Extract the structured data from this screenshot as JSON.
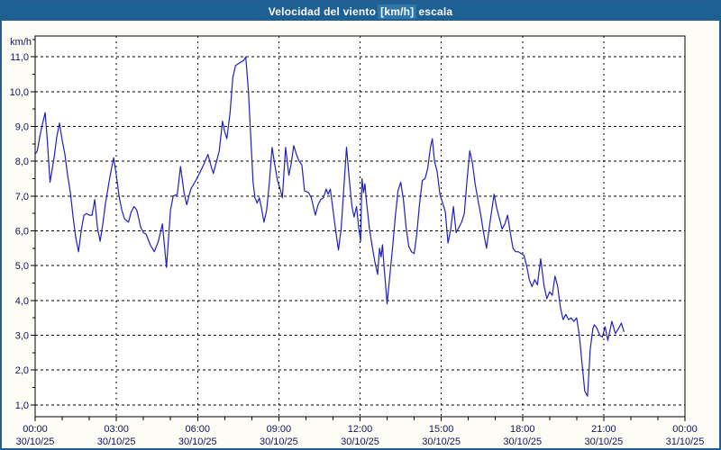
{
  "header": {
    "title_prefix": "Velocidad del viento",
    "title_unit": "[km/h]",
    "title_suffix": "escala"
  },
  "colors": {
    "titlebar_bg": "#1E5F94",
    "titlebar_unit_highlight": "#2F77A8",
    "titlebar_text": "#FFFFFF",
    "window_border": "#235E91",
    "page_bg": "#FDFDF6",
    "plot_bg": "#FFFFFF",
    "grid": "#000000",
    "axis_text": "#121260",
    "line": "#2020C0"
  },
  "chart_data": {
    "type": "line",
    "title": "Velocidad del viento [km/h] escala",
    "ylabel": "km/h",
    "xlabel": "",
    "grid": true,
    "legend": "none",
    "xlim_hours": [
      0,
      24
    ],
    "ylim": [
      0.66,
      11.6
    ],
    "x_major_ticks": [
      {
        "t": 0,
        "time": "00:00",
        "date": "30/10/25"
      },
      {
        "t": 3,
        "time": "03:00",
        "date": "30/10/25"
      },
      {
        "t": 6,
        "time": "06:00",
        "date": "30/10/25"
      },
      {
        "t": 9,
        "time": "09:00",
        "date": "30/10/25"
      },
      {
        "t": 12,
        "time": "12:00",
        "date": "30/10/25"
      },
      {
        "t": 15,
        "time": "15:00",
        "date": "30/10/25"
      },
      {
        "t": 18,
        "time": "18:00",
        "date": "30/10/25"
      },
      {
        "t": 21,
        "time": "21:00",
        "date": "30/10/25"
      },
      {
        "t": 24,
        "time": "00:00",
        "date": "31/10/25"
      }
    ],
    "y_ticks": [
      {
        "v": 1,
        "label": "1,0"
      },
      {
        "v": 2,
        "label": "2,0"
      },
      {
        "v": 3,
        "label": "3,0"
      },
      {
        "v": 4,
        "label": "4,0"
      },
      {
        "v": 5,
        "label": "5,0"
      },
      {
        "v": 6,
        "label": "6,0"
      },
      {
        "v": 7,
        "label": "7,0"
      },
      {
        "v": 8,
        "label": "8,0"
      },
      {
        "v": 9,
        "label": "9,0"
      },
      {
        "v": 10,
        "label": "10,0"
      },
      {
        "v": 11,
        "label": "11,0"
      }
    ],
    "series": [
      {
        "name": "Velocidad del viento",
        "color": "#2020C0",
        "points": [
          [
            0.0,
            8.2
          ],
          [
            0.08,
            8.3
          ],
          [
            0.17,
            8.7
          ],
          [
            0.25,
            9.0
          ],
          [
            0.37,
            9.4
          ],
          [
            0.45,
            8.6
          ],
          [
            0.55,
            7.4
          ],
          [
            0.7,
            8.1
          ],
          [
            0.8,
            8.7
          ],
          [
            0.9,
            9.1
          ],
          [
            1.0,
            8.6
          ],
          [
            1.1,
            8.2
          ],
          [
            1.2,
            7.6
          ],
          [
            1.3,
            7.1
          ],
          [
            1.4,
            6.4
          ],
          [
            1.5,
            5.8
          ],
          [
            1.6,
            5.4
          ],
          [
            1.7,
            6.0
          ],
          [
            1.8,
            6.45
          ],
          [
            1.9,
            6.5
          ],
          [
            2.0,
            6.45
          ],
          [
            2.1,
            6.45
          ],
          [
            2.2,
            6.9
          ],
          [
            2.3,
            6.1
          ],
          [
            2.4,
            5.7
          ],
          [
            2.5,
            6.2
          ],
          [
            2.6,
            6.8
          ],
          [
            2.75,
            7.5
          ],
          [
            2.9,
            8.1
          ],
          [
            3.0,
            7.6
          ],
          [
            3.1,
            7.0
          ],
          [
            3.2,
            6.6
          ],
          [
            3.3,
            6.35
          ],
          [
            3.45,
            6.25
          ],
          [
            3.55,
            6.55
          ],
          [
            3.65,
            6.7
          ],
          [
            3.75,
            6.6
          ],
          [
            3.9,
            6.1
          ],
          [
            4.0,
            5.95
          ],
          [
            4.1,
            5.9
          ],
          [
            4.25,
            5.6
          ],
          [
            4.4,
            5.4
          ],
          [
            4.55,
            5.7
          ],
          [
            4.7,
            6.2
          ],
          [
            4.85,
            4.95
          ],
          [
            5.0,
            6.6
          ],
          [
            5.1,
            7.0
          ],
          [
            5.25,
            7.05
          ],
          [
            5.37,
            7.85
          ],
          [
            5.5,
            7.1
          ],
          [
            5.6,
            6.75
          ],
          [
            5.75,
            7.2
          ],
          [
            5.9,
            7.4
          ],
          [
            6.0,
            7.55
          ],
          [
            6.1,
            7.7
          ],
          [
            6.25,
            7.95
          ],
          [
            6.38,
            8.2
          ],
          [
            6.5,
            7.85
          ],
          [
            6.58,
            7.65
          ],
          [
            6.7,
            8.0
          ],
          [
            6.8,
            8.3
          ],
          [
            6.92,
            9.15
          ],
          [
            7.0,
            8.85
          ],
          [
            7.08,
            8.65
          ],
          [
            7.2,
            9.4
          ],
          [
            7.3,
            10.4
          ],
          [
            7.4,
            10.75
          ],
          [
            7.5,
            10.8
          ],
          [
            7.6,
            10.85
          ],
          [
            7.7,
            10.9
          ],
          [
            7.78,
            11.0
          ],
          [
            7.88,
            10.0
          ],
          [
            7.97,
            8.6
          ],
          [
            8.05,
            7.4
          ],
          [
            8.12,
            6.95
          ],
          [
            8.2,
            6.8
          ],
          [
            8.28,
            6.95
          ],
          [
            8.35,
            6.7
          ],
          [
            8.45,
            6.25
          ],
          [
            8.55,
            6.6
          ],
          [
            8.65,
            7.4
          ],
          [
            8.75,
            8.4
          ],
          [
            8.85,
            7.9
          ],
          [
            8.95,
            7.45
          ],
          [
            9.05,
            7.2
          ],
          [
            9.13,
            6.95
          ],
          [
            9.25,
            8.4
          ],
          [
            9.37,
            7.6
          ],
          [
            9.45,
            7.9
          ],
          [
            9.55,
            8.45
          ],
          [
            9.65,
            8.2
          ],
          [
            9.75,
            8.0
          ],
          [
            9.85,
            7.9
          ],
          [
            9.95,
            7.15
          ],
          [
            10.1,
            7.1
          ],
          [
            10.2,
            6.95
          ],
          [
            10.35,
            6.45
          ],
          [
            10.45,
            6.75
          ],
          [
            10.55,
            6.9
          ],
          [
            10.65,
            6.95
          ],
          [
            10.75,
            7.2
          ],
          [
            10.82,
            7.05
          ],
          [
            10.9,
            7.2
          ],
          [
            11.0,
            6.6
          ],
          [
            11.1,
            6.0
          ],
          [
            11.2,
            5.45
          ],
          [
            11.3,
            6.05
          ],
          [
            11.5,
            8.4
          ],
          [
            11.6,
            7.5
          ],
          [
            11.7,
            6.7
          ],
          [
            11.78,
            6.4
          ],
          [
            11.87,
            6.7
          ],
          [
            11.95,
            6.1
          ],
          [
            12.02,
            5.7
          ],
          [
            12.07,
            7.5
          ],
          [
            12.13,
            7.1
          ],
          [
            12.18,
            7.35
          ],
          [
            12.25,
            6.75
          ],
          [
            12.35,
            6.05
          ],
          [
            12.45,
            5.55
          ],
          [
            12.55,
            5.1
          ],
          [
            12.65,
            4.75
          ],
          [
            12.72,
            5.5
          ],
          [
            12.78,
            5.25
          ],
          [
            12.83,
            5.6
          ],
          [
            12.9,
            4.85
          ],
          [
            12.95,
            4.4
          ],
          [
            13.0,
            3.9
          ],
          [
            13.1,
            4.7
          ],
          [
            13.2,
            5.5
          ],
          [
            13.3,
            6.4
          ],
          [
            13.4,
            7.15
          ],
          [
            13.5,
            7.4
          ],
          [
            13.6,
            6.9
          ],
          [
            13.7,
            6.1
          ],
          [
            13.8,
            5.55
          ],
          [
            13.9,
            5.4
          ],
          [
            14.0,
            5.35
          ],
          [
            14.1,
            5.95
          ],
          [
            14.2,
            6.8
          ],
          [
            14.3,
            7.45
          ],
          [
            14.4,
            7.5
          ],
          [
            14.5,
            7.8
          ],
          [
            14.6,
            8.4
          ],
          [
            14.67,
            8.65
          ],
          [
            14.75,
            8.0
          ],
          [
            14.85,
            7.7
          ],
          [
            14.95,
            7.05
          ],
          [
            15.05,
            6.8
          ],
          [
            15.15,
            6.55
          ],
          [
            15.25,
            5.65
          ],
          [
            15.35,
            6.05
          ],
          [
            15.45,
            6.7
          ],
          [
            15.55,
            5.95
          ],
          [
            15.65,
            6.1
          ],
          [
            15.75,
            6.25
          ],
          [
            15.85,
            6.5
          ],
          [
            15.95,
            7.45
          ],
          [
            16.05,
            8.3
          ],
          [
            16.15,
            7.95
          ],
          [
            16.25,
            7.35
          ],
          [
            16.35,
            6.9
          ],
          [
            16.45,
            6.5
          ],
          [
            16.55,
            6.0
          ],
          [
            16.67,
            5.5
          ],
          [
            16.8,
            6.25
          ],
          [
            16.95,
            7.05
          ],
          [
            17.05,
            6.65
          ],
          [
            17.15,
            6.35
          ],
          [
            17.25,
            6.05
          ],
          [
            17.35,
            6.2
          ],
          [
            17.45,
            6.45
          ],
          [
            17.55,
            5.95
          ],
          [
            17.65,
            5.5
          ],
          [
            17.75,
            5.4
          ],
          [
            17.85,
            5.4
          ],
          [
            17.95,
            5.35
          ],
          [
            18.05,
            5.3
          ],
          [
            18.15,
            5.0
          ],
          [
            18.25,
            4.6
          ],
          [
            18.35,
            4.4
          ],
          [
            18.45,
            4.6
          ],
          [
            18.55,
            4.45
          ],
          [
            18.67,
            5.2
          ],
          [
            18.8,
            4.4
          ],
          [
            18.9,
            4.05
          ],
          [
            19.0,
            4.25
          ],
          [
            19.1,
            4.15
          ],
          [
            19.2,
            4.7
          ],
          [
            19.3,
            4.4
          ],
          [
            19.4,
            3.8
          ],
          [
            19.5,
            3.45
          ],
          [
            19.6,
            3.6
          ],
          [
            19.7,
            3.45
          ],
          [
            19.8,
            3.5
          ],
          [
            19.9,
            3.4
          ],
          [
            20.0,
            3.5
          ],
          [
            20.1,
            3.0
          ],
          [
            20.2,
            2.2
          ],
          [
            20.3,
            1.4
          ],
          [
            20.4,
            1.25
          ],
          [
            20.5,
            2.6
          ],
          [
            20.6,
            3.2
          ],
          [
            20.65,
            3.3
          ],
          [
            20.75,
            3.2
          ],
          [
            20.85,
            3.0
          ],
          [
            20.95,
            2.95
          ],
          [
            21.05,
            3.25
          ],
          [
            21.15,
            2.85
          ],
          [
            21.3,
            3.4
          ],
          [
            21.43,
            3.05
          ],
          [
            21.55,
            3.2
          ],
          [
            21.65,
            3.35
          ],
          [
            21.75,
            3.1
          ]
        ]
      }
    ]
  }
}
